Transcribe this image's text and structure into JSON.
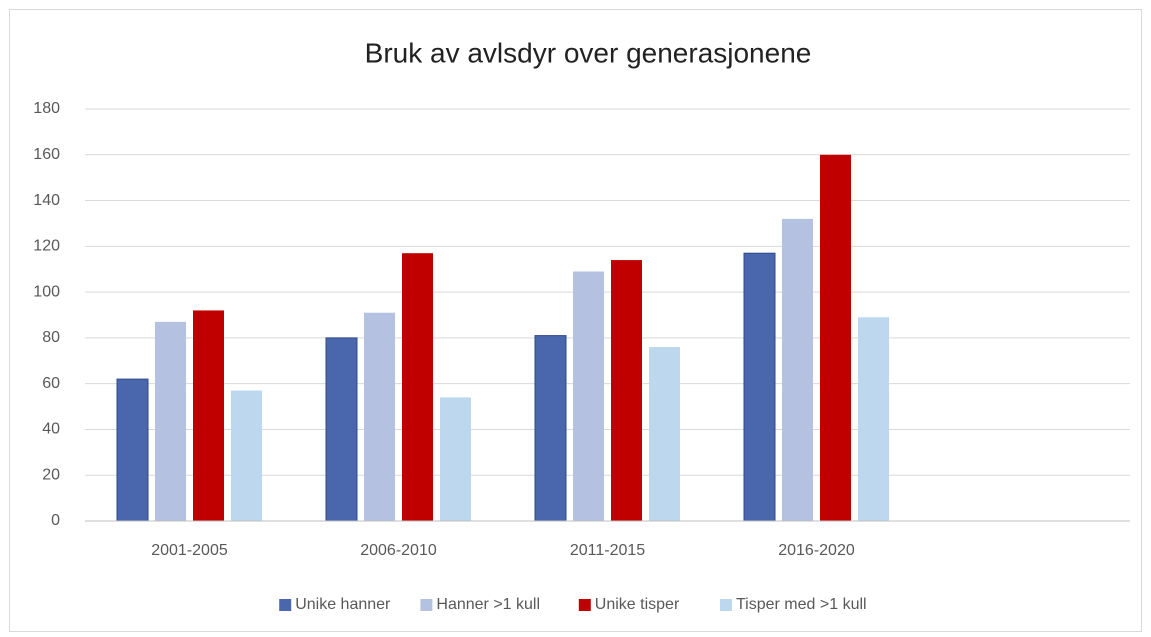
{
  "chart_data": {
    "type": "bar",
    "title": "Bruk av avlsdyr over generasjonene",
    "categories": [
      "2001-2005",
      "2006-2010",
      "2011-2015",
      "2016-2020",
      null
    ],
    "series": [
      {
        "name": "Unike hanner",
        "color": "#4a66ad",
        "values": [
          62,
          80,
          81,
          117,
          null
        ]
      },
      {
        "name": "Hanner >1 kull",
        "color": "#b4c1e1",
        "values": [
          87,
          91,
          109,
          132,
          null
        ]
      },
      {
        "name": "Unike tisper",
        "color": "#c00000",
        "values": [
          92,
          117,
          114,
          160,
          null
        ]
      },
      {
        "name": "Tisper med >1 kull",
        "color": "#bdd7ee",
        "values": [
          57,
          54,
          76,
          89,
          null
        ]
      }
    ],
    "ylim": [
      0,
      180
    ],
    "yticks": [
      0,
      20,
      40,
      60,
      80,
      100,
      120,
      140,
      160,
      180
    ],
    "grid": true,
    "legend": "bottom"
  }
}
